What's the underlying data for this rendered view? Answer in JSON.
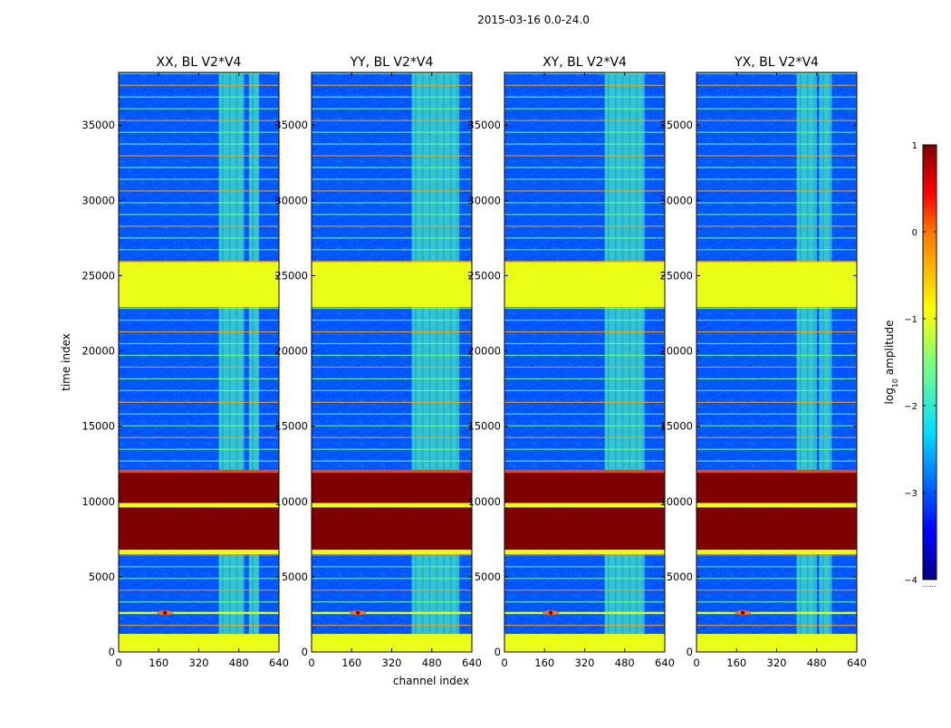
{
  "figure": {
    "suptitle": "2015-03-16 0.0-24.0"
  },
  "chart_data": {
    "type": "heatmap",
    "title": "2015-03-16 0.0-24.0",
    "xlabel": "channel index",
    "ylabel": "time index",
    "xlim": [
      0,
      640
    ],
    "ylim": [
      0,
      38500
    ],
    "x_ticks": [
      0,
      160,
      320,
      480,
      640
    ],
    "y_ticks": [
      0,
      5000,
      10000,
      15000,
      20000,
      25000,
      30000,
      35000
    ],
    "colormap": "jet",
    "colorbar": {
      "label_prefix": "log",
      "label_sub": "10",
      "label_suffix": " amplitude",
      "range": [
        -4,
        1
      ],
      "ticks": [
        -4,
        -3,
        -2,
        -1,
        0,
        1
      ],
      "tick_labels": [
        "−4",
        "−3",
        "−2",
        "−1",
        "0",
        "1"
      ],
      "below_marker": "......"
    },
    "panels": [
      {
        "title": "XX, BL V2*V4",
        "active_channels": [
          [
            400,
            500
          ],
          [
            520,
            560
          ]
        ]
      },
      {
        "title": "YY, BL V2*V4",
        "active_channels": [
          [
            400,
            590
          ]
        ]
      },
      {
        "title": "XY, BL V2*V4",
        "active_channels": [
          [
            400,
            560
          ]
        ]
      },
      {
        "title": "YX, BL V2*V4",
        "active_channels": [
          [
            400,
            480
          ],
          [
            490,
            540
          ]
        ]
      }
    ],
    "time_bands": [
      {
        "from": 0,
        "to": 1200,
        "log10_amplitude": -1.0,
        "note": "flagged (uniform)"
      },
      {
        "from": 6500,
        "to": 6800,
        "log10_amplitude": -1.0,
        "note": "flagged"
      },
      {
        "from": 6800,
        "to": 9600,
        "log10_amplitude": 1.0,
        "note": "saturated"
      },
      {
        "from": 9600,
        "to": 9900,
        "log10_amplitude": -1.0,
        "note": "flagged"
      },
      {
        "from": 9900,
        "to": 11900,
        "log10_amplitude": 1.0,
        "note": "saturated"
      },
      {
        "from": 11900,
        "to": 12100,
        "log10_amplitude": 0.2,
        "note": "edge"
      },
      {
        "from": 22900,
        "to": 25900,
        "log10_amplitude": -1.0,
        "note": "flagged (uniform)"
      }
    ],
    "background_log10_amplitude": -3.0,
    "active_region_log10_amplitude": -1.8,
    "source_spot": {
      "channel": 185,
      "time": 2600,
      "log10_amplitude": 1.0
    }
  }
}
